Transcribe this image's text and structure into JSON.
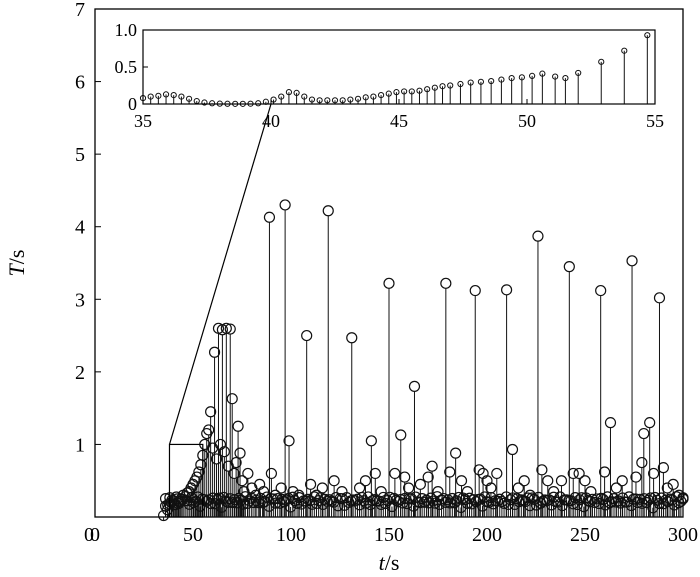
{
  "chart_data": [
    {
      "type": "stem",
      "xlabel_var": "t",
      "xlabel_unit": "/s",
      "ylabel_var": "T",
      "ylabel_unit": "/s",
      "xlim": [
        0,
        300
      ],
      "ylim": [
        0,
        7
      ],
      "x_ticks": [
        0,
        50,
        100,
        150,
        200,
        250,
        300
      ],
      "y_ticks": [
        1,
        2,
        3,
        4,
        5,
        6,
        7
      ],
      "grid": false,
      "zoom_box": {
        "x": [
          38,
          55
        ],
        "y": [
          0,
          1
        ]
      },
      "points": [
        [
          35,
          0.02
        ],
        [
          36,
          0.15
        ],
        [
          37,
          0.1
        ],
        [
          38,
          0.18
        ],
        [
          39,
          0.2
        ],
        [
          40,
          0.22
        ],
        [
          41,
          0.17
        ],
        [
          42,
          0.25
        ],
        [
          43,
          0.21
        ],
        [
          44,
          0.25
        ],
        [
          45,
          0.3
        ],
        [
          46,
          0.28
        ],
        [
          47,
          0.33
        ],
        [
          48,
          0.35
        ],
        [
          49,
          0.4
        ],
        [
          50,
          0.45
        ],
        [
          51,
          0.5
        ],
        [
          52,
          0.55
        ],
        [
          53,
          0.62
        ],
        [
          54,
          0.72
        ],
        [
          55,
          0.85
        ],
        [
          56,
          1.0
        ],
        [
          57,
          1.15
        ],
        [
          58,
          1.2
        ],
        [
          59,
          1.45
        ],
        [
          60,
          0.95
        ],
        [
          61,
          2.27
        ],
        [
          62,
          0.8
        ],
        [
          63,
          2.6
        ],
        [
          64,
          1.0
        ],
        [
          65,
          2.58
        ],
        [
          66,
          0.9
        ],
        [
          67,
          2.6
        ],
        [
          68,
          0.7
        ],
        [
          69,
          2.59
        ],
        [
          70,
          1.63
        ],
        [
          71,
          0.6
        ],
        [
          72,
          0.75
        ],
        [
          73,
          1.25
        ],
        [
          74,
          0.88
        ],
        [
          75,
          0.5
        ],
        [
          76,
          0.35
        ],
        [
          78,
          0.6
        ],
        [
          80,
          0.4
        ],
        [
          82,
          0.3
        ],
        [
          84,
          0.45
        ],
        [
          86,
          0.35
        ],
        [
          89,
          4.13
        ],
        [
          90,
          0.6
        ],
        [
          92,
          0.3
        ],
        [
          95,
          0.4
        ],
        [
          97,
          4.3
        ],
        [
          99,
          1.05
        ],
        [
          101,
          0.35
        ],
        [
          104,
          0.3
        ],
        [
          108,
          2.5
        ],
        [
          110,
          0.45
        ],
        [
          113,
          0.3
        ],
        [
          116,
          0.4
        ],
        [
          119,
          4.22
        ],
        [
          122,
          0.5
        ],
        [
          126,
          0.35
        ],
        [
          131,
          2.47
        ],
        [
          135,
          0.4
        ],
        [
          138,
          0.5
        ],
        [
          141,
          1.05
        ],
        [
          143,
          0.6
        ],
        [
          146,
          0.35
        ],
        [
          150,
          3.22
        ],
        [
          153,
          0.6
        ],
        [
          156,
          1.13
        ],
        [
          158,
          0.55
        ],
        [
          160,
          0.4
        ],
        [
          163,
          1.8
        ],
        [
          166,
          0.45
        ],
        [
          170,
          0.55
        ],
        [
          172,
          0.7
        ],
        [
          175,
          0.35
        ],
        [
          179,
          3.22
        ],
        [
          181,
          0.62
        ],
        [
          184,
          0.88
        ],
        [
          187,
          0.5
        ],
        [
          190,
          0.35
        ],
        [
          194,
          3.12
        ],
        [
          196,
          0.65
        ],
        [
          198,
          0.6
        ],
        [
          200,
          0.5
        ],
        [
          202,
          0.4
        ],
        [
          205,
          0.6
        ],
        [
          210,
          3.13
        ],
        [
          213,
          0.93
        ],
        [
          216,
          0.4
        ],
        [
          219,
          0.5
        ],
        [
          222,
          0.3
        ],
        [
          226,
          3.87
        ],
        [
          228,
          0.65
        ],
        [
          231,
          0.5
        ],
        [
          234,
          0.35
        ],
        [
          238,
          0.5
        ],
        [
          242,
          3.45
        ],
        [
          244,
          0.6
        ],
        [
          247,
          0.6
        ],
        [
          250,
          0.5
        ],
        [
          253,
          0.35
        ],
        [
          258,
          3.12
        ],
        [
          260,
          0.62
        ],
        [
          263,
          1.3
        ],
        [
          266,
          0.4
        ],
        [
          269,
          0.5
        ],
        [
          274,
          3.53
        ],
        [
          276,
          0.55
        ],
        [
          279,
          0.75
        ],
        [
          280,
          1.15
        ],
        [
          283,
          1.3
        ],
        [
          285,
          0.6
        ],
        [
          288,
          3.02
        ],
        [
          290,
          0.68
        ],
        [
          292,
          0.4
        ],
        [
          295,
          0.45
        ],
        [
          298,
          0.3
        ],
        [
          300,
          0.25
        ]
      ]
    },
    {
      "type": "stem",
      "inset": true,
      "xlim": [
        35,
        55
      ],
      "ylim": [
        0,
        1
      ],
      "x_ticks": [
        35,
        40,
        45,
        50,
        55
      ],
      "y_ticks": [
        0,
        0.5,
        1
      ],
      "y_tick_labels": [
        "0",
        "0.5",
        "1.0"
      ],
      "points": [
        [
          35,
          0.08
        ],
        [
          35.3,
          0.1
        ],
        [
          35.6,
          0.11
        ],
        [
          35.9,
          0.13
        ],
        [
          36.2,
          0.12
        ],
        [
          36.5,
          0.1
        ],
        [
          36.8,
          0.07
        ],
        [
          37.1,
          0.04
        ],
        [
          37.4,
          0.02
        ],
        [
          37.7,
          0.01
        ],
        [
          38,
          0.005
        ],
        [
          38.3,
          0.003
        ],
        [
          38.6,
          0.002
        ],
        [
          38.9,
          0.002
        ],
        [
          39.2,
          0.004
        ],
        [
          39.5,
          0.01
        ],
        [
          39.8,
          0.03
        ],
        [
          40.1,
          0.06
        ],
        [
          40.4,
          0.1
        ],
        [
          40.7,
          0.16
        ],
        [
          41,
          0.15
        ],
        [
          41.3,
          0.1
        ],
        [
          41.6,
          0.06
        ],
        [
          41.9,
          0.05
        ],
        [
          42.2,
          0.05
        ],
        [
          42.5,
          0.05
        ],
        [
          42.8,
          0.05
        ],
        [
          43.1,
          0.06
        ],
        [
          43.4,
          0.07
        ],
        [
          43.7,
          0.09
        ],
        [
          44,
          0.1
        ],
        [
          44.3,
          0.12
        ],
        [
          44.6,
          0.14
        ],
        [
          44.9,
          0.16
        ],
        [
          45.2,
          0.17
        ],
        [
          45.5,
          0.17
        ],
        [
          45.8,
          0.18
        ],
        [
          46.1,
          0.2
        ],
        [
          46.4,
          0.22
        ],
        [
          46.7,
          0.24
        ],
        [
          47,
          0.25
        ],
        [
          47.4,
          0.27
        ],
        [
          47.8,
          0.29
        ],
        [
          48.2,
          0.3
        ],
        [
          48.6,
          0.31
        ],
        [
          49,
          0.33
        ],
        [
          49.4,
          0.35
        ],
        [
          49.8,
          0.36
        ],
        [
          50.2,
          0.38
        ],
        [
          50.6,
          0.41
        ],
        [
          51.1,
          0.37
        ],
        [
          51.5,
          0.35
        ],
        [
          52,
          0.42
        ],
        [
          52.9,
          0.57
        ],
        [
          53.8,
          0.72
        ],
        [
          54.7,
          0.93
        ]
      ]
    }
  ]
}
